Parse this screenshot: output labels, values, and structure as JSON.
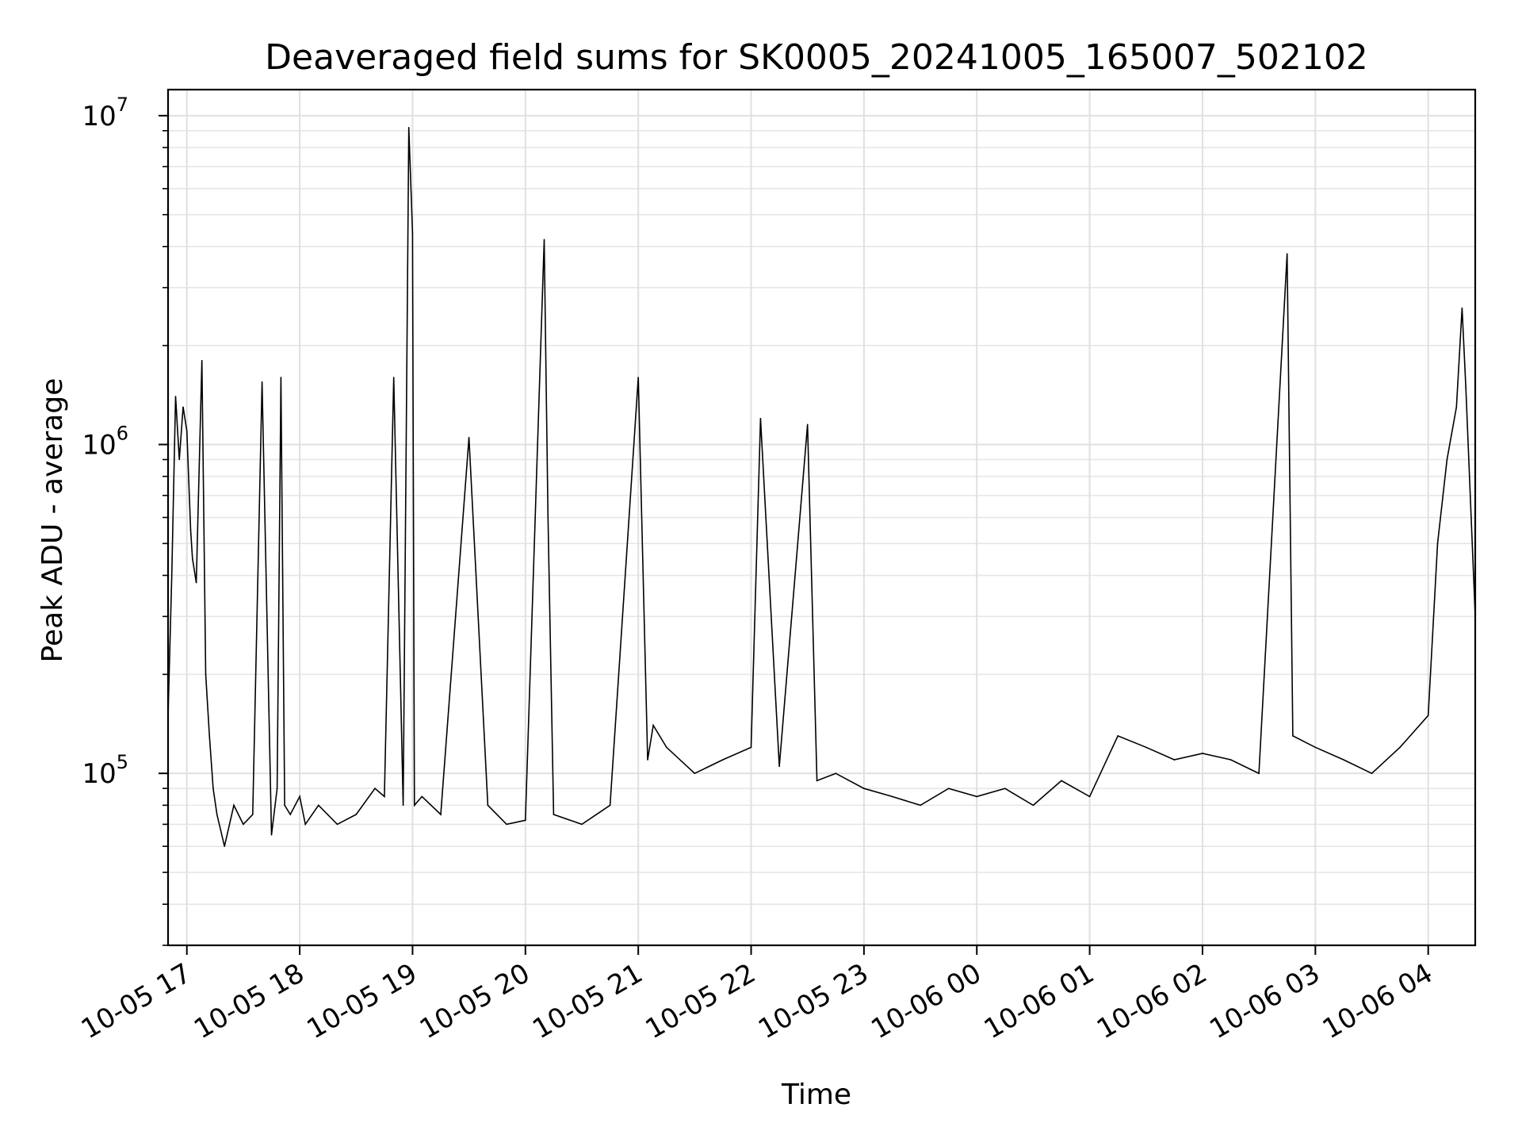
{
  "chart_data": {
    "type": "line",
    "title": "Deaveraged field sums for SK0005_20241005_165007_502102",
    "xlabel": "Time",
    "ylabel": "Peak ADU - average",
    "y_scale": "log",
    "ylim": [
      30000,
      12000000
    ],
    "xlim": [
      "2024-10-05T16:50:00",
      "2024-10-06T04:25:00"
    ],
    "grid": true,
    "legend": "none",
    "line_color": "#000000",
    "x_ticks": [
      {
        "value": "2024-10-05T17:00:00",
        "label": "10-05 17"
      },
      {
        "value": "2024-10-05T18:00:00",
        "label": "10-05 18"
      },
      {
        "value": "2024-10-05T19:00:00",
        "label": "10-05 19"
      },
      {
        "value": "2024-10-05T20:00:00",
        "label": "10-05 20"
      },
      {
        "value": "2024-10-05T21:00:00",
        "label": "10-05 21"
      },
      {
        "value": "2024-10-05T22:00:00",
        "label": "10-05 22"
      },
      {
        "value": "2024-10-05T23:00:00",
        "label": "10-05 23"
      },
      {
        "value": "2024-10-06T00:00:00",
        "label": "10-06 00"
      },
      {
        "value": "2024-10-06T01:00:00",
        "label": "10-06 01"
      },
      {
        "value": "2024-10-06T02:00:00",
        "label": "10-06 02"
      },
      {
        "value": "2024-10-06T03:00:00",
        "label": "10-06 03"
      },
      {
        "value": "2024-10-06T04:00:00",
        "label": "10-06 04"
      }
    ],
    "y_ticks": [
      {
        "value": 100000,
        "base": "10",
        "exp": "5"
      },
      {
        "value": 1000000,
        "base": "10",
        "exp": "6"
      },
      {
        "value": 10000000,
        "base": "10",
        "exp": "7"
      }
    ],
    "series": [
      {
        "x": [
          "2024-10-05T16:50:00",
          "2024-10-05T16:52:00",
          "2024-10-05T16:54:00",
          "2024-10-05T16:56:00",
          "2024-10-05T16:58:00",
          "2024-10-05T17:00:00",
          "2024-10-05T17:02:00",
          "2024-10-05T17:03:00",
          "2024-10-05T17:05:00",
          "2024-10-05T17:08:00",
          "2024-10-05T17:10:00",
          "2024-10-05T17:12:00",
          "2024-10-05T17:14:00",
          "2024-10-05T17:16:00",
          "2024-10-05T17:20:00",
          "2024-10-05T17:25:00",
          "2024-10-05T17:30:00",
          "2024-10-05T17:35:00",
          "2024-10-05T17:40:00",
          "2024-10-05T17:45:00",
          "2024-10-05T17:48:00",
          "2024-10-05T17:50:00",
          "2024-10-05T17:52:00",
          "2024-10-05T17:55:00",
          "2024-10-05T18:00:00",
          "2024-10-05T18:03:00",
          "2024-10-05T18:10:00",
          "2024-10-05T18:20:00",
          "2024-10-05T18:30:00",
          "2024-10-05T18:40:00",
          "2024-10-05T18:45:00",
          "2024-10-05T18:50:00",
          "2024-10-05T18:55:00",
          "2024-10-05T18:58:00",
          "2024-10-05T19:00:00",
          "2024-10-05T19:01:00",
          "2024-10-05T19:05:00",
          "2024-10-05T19:15:00",
          "2024-10-05T19:30:00",
          "2024-10-05T19:40:00",
          "2024-10-05T19:50:00",
          "2024-10-05T20:00:00",
          "2024-10-05T20:10:00",
          "2024-10-05T20:12:00",
          "2024-10-05T20:15:00",
          "2024-10-05T20:30:00",
          "2024-10-05T20:45:00",
          "2024-10-05T21:00:00",
          "2024-10-05T21:05:00",
          "2024-10-05T21:08:00",
          "2024-10-05T21:15:00",
          "2024-10-05T21:30:00",
          "2024-10-05T21:45:00",
          "2024-10-05T22:00:00",
          "2024-10-05T22:05:00",
          "2024-10-05T22:15:00",
          "2024-10-05T22:30:00",
          "2024-10-05T22:35:00",
          "2024-10-05T22:45:00",
          "2024-10-05T23:00:00",
          "2024-10-05T23:15:00",
          "2024-10-05T23:30:00",
          "2024-10-05T23:45:00",
          "2024-10-06T00:00:00",
          "2024-10-06T00:15:00",
          "2024-10-06T00:30:00",
          "2024-10-06T00:45:00",
          "2024-10-06T01:00:00",
          "2024-10-06T01:15:00",
          "2024-10-06T01:30:00",
          "2024-10-06T01:45:00",
          "2024-10-06T02:00:00",
          "2024-10-06T02:15:00",
          "2024-10-06T02:30:00",
          "2024-10-06T02:45:00",
          "2024-10-06T02:48:00",
          "2024-10-06T03:00:00",
          "2024-10-06T03:15:00",
          "2024-10-06T03:30:00",
          "2024-10-06T03:45:00",
          "2024-10-06T04:00:00",
          "2024-10-06T04:05:00",
          "2024-10-06T04:10:00",
          "2024-10-06T04:15:00",
          "2024-10-06T04:18:00",
          "2024-10-06T04:20:00",
          "2024-10-06T04:25:00"
        ],
        "y": [
          150000,
          400000,
          1400000,
          900000,
          1300000,
          1100000,
          550000,
          450000,
          380000,
          1800000,
          200000,
          130000,
          90000,
          75000,
          60000,
          80000,
          70000,
          75000,
          1550000,
          65000,
          90000,
          1600000,
          80000,
          75000,
          85000,
          70000,
          80000,
          70000,
          75000,
          90000,
          85000,
          1600000,
          80000,
          9200000,
          4400000,
          80000,
          85000,
          75000,
          1050000,
          80000,
          70000,
          72000,
          4200000,
          600000,
          75000,
          70000,
          80000,
          1600000,
          110000,
          140000,
          120000,
          100000,
          110000,
          120000,
          1200000,
          105000,
          1150000,
          95000,
          100000,
          90000,
          85000,
          80000,
          90000,
          85000,
          90000,
          80000,
          95000,
          85000,
          130000,
          120000,
          110000,
          115000,
          110000,
          100000,
          3800000,
          130000,
          120000,
          110000,
          100000,
          120000,
          150000,
          500000,
          900000,
          1300000,
          2600000,
          1500000,
          300000
        ]
      }
    ]
  }
}
